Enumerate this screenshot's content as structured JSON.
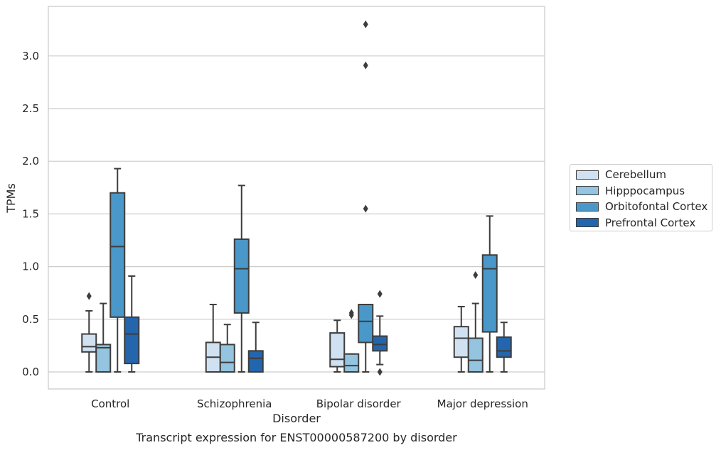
{
  "chart_data": {
    "type": "boxplot",
    "title": "Transcript expression for ENST00000587200 by disorder",
    "xlabel": "Disorder",
    "ylabel": "TPMs",
    "ylim": [
      -0.16,
      3.48
    ],
    "yticks": [
      0.0,
      0.5,
      1.0,
      1.5,
      2.0,
      2.5,
      3.0
    ],
    "ytick_labels": [
      "0.0",
      "0.5",
      "1.0",
      "1.5",
      "2.0",
      "2.5",
      "3.0"
    ],
    "categories": [
      "Control",
      "Schizophrenia",
      "Bipolar disorder",
      "Major depression"
    ],
    "grid": "horizontal",
    "legend_position": "right",
    "series": [
      {
        "name": "Cerebellum",
        "color": "#d0e1f2",
        "boxes": [
          {
            "whislo": 0.0,
            "q1": 0.19,
            "med": 0.24,
            "q3": 0.36,
            "whishi": 0.58,
            "fliers": [
              0.72
            ]
          },
          {
            "whislo": 0.0,
            "q1": 0.0,
            "med": 0.14,
            "q3": 0.28,
            "whishi": 0.64,
            "fliers": []
          },
          {
            "whislo": 0.0,
            "q1": 0.05,
            "med": 0.12,
            "q3": 0.37,
            "whishi": 0.49,
            "fliers": []
          },
          {
            "whislo": 0.0,
            "q1": 0.14,
            "med": 0.32,
            "q3": 0.43,
            "whishi": 0.62,
            "fliers": []
          }
        ]
      },
      {
        "name": "Hipppocampus",
        "color": "#94c4df",
        "boxes": [
          {
            "whislo": 0.0,
            "q1": 0.0,
            "med": 0.23,
            "q3": 0.26,
            "whishi": 0.65,
            "fliers": []
          },
          {
            "whislo": 0.0,
            "q1": 0.0,
            "med": 0.09,
            "q3": 0.26,
            "whishi": 0.45,
            "fliers": []
          },
          {
            "whislo": 0.0,
            "q1": 0.0,
            "med": 0.06,
            "q3": 0.17,
            "whishi": 0.17,
            "fliers": [
              0.54,
              0.56
            ]
          },
          {
            "whislo": 0.0,
            "q1": 0.0,
            "med": 0.11,
            "q3": 0.32,
            "whishi": 0.65,
            "fliers": [
              0.92
            ]
          }
        ]
      },
      {
        "name": "Orbitofontal Cortex",
        "color": "#4a98c9",
        "boxes": [
          {
            "whislo": 0.0,
            "q1": 0.52,
            "med": 1.19,
            "q3": 1.7,
            "whishi": 1.93,
            "fliers": []
          },
          {
            "whislo": 0.0,
            "q1": 0.56,
            "med": 0.98,
            "q3": 1.26,
            "whishi": 1.77,
            "fliers": []
          },
          {
            "whislo": 0.0,
            "q1": 0.28,
            "med": 0.48,
            "q3": 0.64,
            "whishi": 0.64,
            "fliers": [
              1.55,
              2.91,
              3.3
            ]
          },
          {
            "whislo": 0.0,
            "q1": 0.38,
            "med": 0.98,
            "q3": 1.11,
            "whishi": 1.48,
            "fliers": []
          }
        ]
      },
      {
        "name": "Prefrontal Cortex",
        "color": "#2366ad",
        "boxes": [
          {
            "whislo": 0.0,
            "q1": 0.08,
            "med": 0.36,
            "q3": 0.52,
            "whishi": 0.91,
            "fliers": []
          },
          {
            "whislo": 0.0,
            "q1": 0.0,
            "med": 0.13,
            "q3": 0.2,
            "whishi": 0.47,
            "fliers": []
          },
          {
            "whislo": 0.07,
            "q1": 0.2,
            "med": 0.26,
            "q3": 0.34,
            "whishi": 0.53,
            "fliers": [
              0.0,
              0.74
            ]
          },
          {
            "whislo": 0.0,
            "q1": 0.14,
            "med": 0.2,
            "q3": 0.33,
            "whishi": 0.47,
            "fliers": []
          }
        ]
      }
    ]
  }
}
